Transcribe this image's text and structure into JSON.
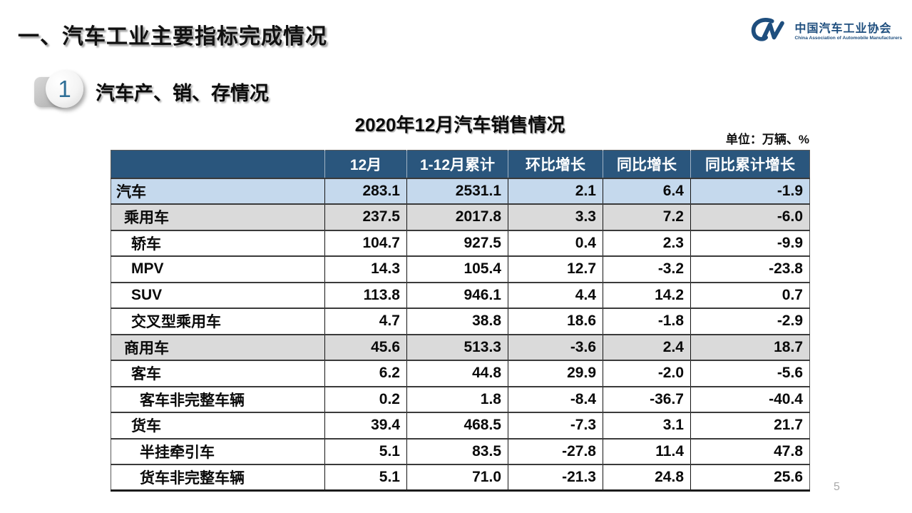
{
  "slide": {
    "main_title": "一、汽车工业主要指标完成情况",
    "page_number": "5"
  },
  "logo": {
    "name_zh": "中国汽车工业协会",
    "name_en": "China Association of Automobile Manufacturers",
    "color": "#1E4E7E"
  },
  "section": {
    "number": "1",
    "title": "汽车产、销、存情况"
  },
  "table": {
    "title": "2020年12月汽车销售情况",
    "unit_label": "单位：万辆、%",
    "columns": [
      "",
      "12月",
      "1-12月累计",
      "环比增长",
      "同比增长",
      "同比累计增长"
    ],
    "rows": [
      {
        "label": "汽车",
        "indent": 0,
        "bg": "blue",
        "values": [
          "283.1",
          "2531.1",
          "2.1",
          "6.4",
          "-1.9"
        ]
      },
      {
        "label": "乘用车",
        "indent": 1,
        "bg": "gray",
        "values": [
          "237.5",
          "2017.8",
          "3.3",
          "7.2",
          "-6.0"
        ]
      },
      {
        "label": "轿车",
        "indent": 2,
        "bg": "white",
        "values": [
          "104.7",
          "927.5",
          "0.4",
          "2.3",
          "-9.9"
        ]
      },
      {
        "label": "MPV",
        "indent": 2,
        "bg": "white",
        "values": [
          "14.3",
          "105.4",
          "12.7",
          "-3.2",
          "-23.8"
        ]
      },
      {
        "label": "SUV",
        "indent": 2,
        "bg": "white",
        "values": [
          "113.8",
          "946.1",
          "4.4",
          "14.2",
          "0.7"
        ]
      },
      {
        "label": "交叉型乘用车",
        "indent": 2,
        "bg": "white",
        "values": [
          "4.7",
          "38.8",
          "18.6",
          "-1.8",
          "-2.9"
        ]
      },
      {
        "label": "商用车",
        "indent": 1,
        "bg": "gray",
        "values": [
          "45.6",
          "513.3",
          "-3.6",
          "2.4",
          "18.7"
        ]
      },
      {
        "label": "客车",
        "indent": 2,
        "bg": "white",
        "values": [
          "6.2",
          "44.8",
          "29.9",
          "-2.0",
          "-5.6"
        ]
      },
      {
        "label": "客车非完整车辆",
        "indent": 3,
        "bg": "white",
        "values": [
          "0.2",
          "1.8",
          "-8.4",
          "-36.7",
          "-40.4"
        ]
      },
      {
        "label": "货车",
        "indent": 2,
        "bg": "white",
        "values": [
          "39.4",
          "468.5",
          "-7.3",
          "3.1",
          "21.7"
        ]
      },
      {
        "label": "半挂牵引车",
        "indent": 3,
        "bg": "white",
        "values": [
          "5.1",
          "83.5",
          "-27.8",
          "11.4",
          "47.8"
        ]
      },
      {
        "label": "货车非完整车辆",
        "indent": 3,
        "bg": "white",
        "values": [
          "5.1",
          "71.0",
          "-21.3",
          "24.8",
          "25.6"
        ]
      }
    ]
  },
  "colors": {
    "header_bg": "#2A567D",
    "row_highlight_blue": "#C5D9ED",
    "row_highlight_gray": "#DADADA",
    "accent_blue": "#1E4E7E",
    "page_number_gray": "#A9A9A9"
  }
}
